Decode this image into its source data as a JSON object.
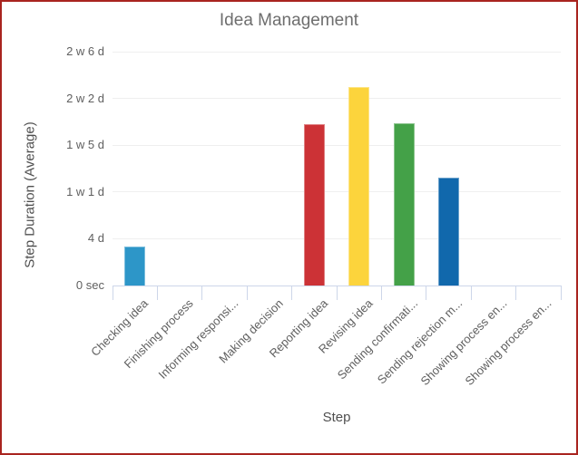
{
  "window": {
    "border_color": "#A9241F",
    "background": "#FFFFFF"
  },
  "chart_data": {
    "type": "bar",
    "title": "Idea Management",
    "xlabel": "Step",
    "ylabel": "Step Duration (Average)",
    "categories": [
      "Checking idea",
      "Finishing process",
      "Informing responsi...",
      "Making decision",
      "Reporting idea",
      "Revising idea",
      "Sending confirmati...",
      "Sending rejection m...",
      "Showing process en...",
      "Showing process en..."
    ],
    "values_days": [
      3.3,
      0,
      0,
      0,
      13.8,
      17,
      13.9,
      9.2,
      0,
      0
    ],
    "bar_colors": [
      "#2D96C8",
      null,
      null,
      null,
      "#CC3236",
      "#FCD43C",
      "#44A148",
      "#1168AC",
      null,
      null
    ],
    "y_ticks": [
      {
        "label": "0 sec",
        "days": 0
      },
      {
        "label": "4 d",
        "days": 4
      },
      {
        "label": "1 w 1 d",
        "days": 8
      },
      {
        "label": "1 w 5 d",
        "days": 12
      },
      {
        "label": "2 w 2 d",
        "days": 16
      },
      {
        "label": "2 w 6 d",
        "days": 20
      }
    ],
    "y_range_days": [
      0,
      20
    ],
    "legend": "none",
    "grid": "horizontal-only",
    "colors": {
      "title_text": "#6E6E6E",
      "tick_label_text": "#5F5F5F",
      "axis_title_text": "#4F4F4F",
      "gridline": "#EFEFEF",
      "axis_line": "#CDD6E9"
    }
  }
}
